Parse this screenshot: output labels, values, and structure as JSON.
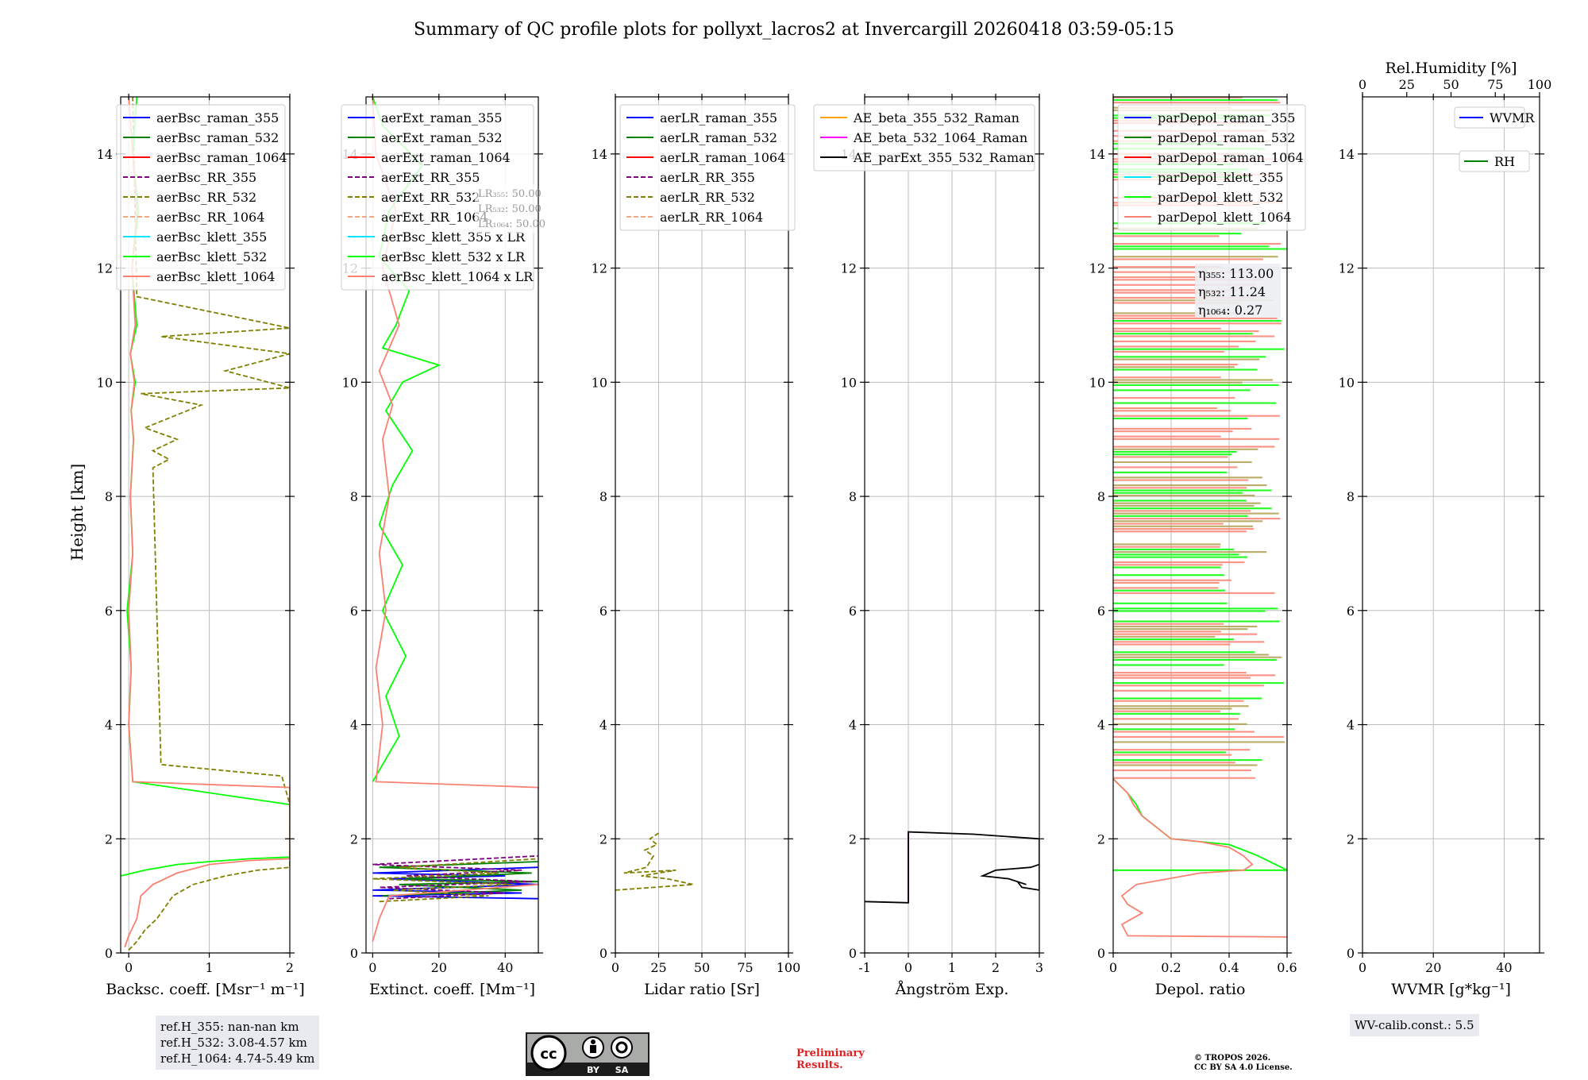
{
  "title": "Summary of QC profile plots for pollyxt_lacros2 at Invercargill 20260418 03:59-05:15",
  "ylabel": "Height [km]",
  "chart_data": [
    {
      "type": "line",
      "id": "bsc",
      "xlabel": "Backsc. coeff. [Msr⁻¹ m⁻¹]",
      "xlim": [
        -0.1,
        2
      ],
      "xticks": [
        0,
        1,
        2
      ],
      "ylim": [
        0,
        15
      ],
      "legend": "top-right",
      "series": [
        {
          "name": "aerBsc_raman_355",
          "color": "#0000ff",
          "dash": false
        },
        {
          "name": "aerBsc_raman_532",
          "color": "#008000",
          "dash": false
        },
        {
          "name": "aerBsc_raman_1064",
          "color": "#ff0000",
          "dash": false
        },
        {
          "name": "aerBsc_RR_355",
          "color": "#800080",
          "dash": true
        },
        {
          "name": "aerBsc_RR_532",
          "color": "#808000",
          "dash": true,
          "x": [
            0.0,
            0.1,
            0.2,
            0.35,
            0.45,
            0.55,
            0.8,
            1.2,
            1.6,
            2.0,
            2.0,
            1.9,
            0.4,
            0.3,
            0.5,
            0.3,
            0.6,
            0.2,
            0.9,
            0.15,
            2.0,
            1.2,
            2.0,
            0.4,
            2.0,
            0.1,
            0.05
          ],
          "y": [
            0.05,
            0.2,
            0.4,
            0.6,
            0.8,
            1.0,
            1.2,
            1.35,
            1.45,
            1.5,
            2.6,
            3.1,
            3.3,
            8.5,
            8.65,
            8.8,
            9.0,
            9.2,
            9.6,
            9.8,
            9.9,
            10.2,
            10.5,
            10.8,
            10.95,
            11.5,
            15
          ]
        },
        {
          "name": "aerBsc_RR_1064",
          "color": "#f4a582",
          "dash": true
        },
        {
          "name": "aerBsc_klett_355",
          "color": "#00e5ff",
          "dash": false
        },
        {
          "name": "aerBsc_klett_532",
          "color": "#00ff00",
          "dash": false,
          "x": [
            -0.1,
            0.2,
            0.6,
            1.0,
            1.5,
            2.0,
            2.0,
            0.05,
            0.0,
            0.03,
            -0.02,
            0.05,
            0.02,
            0.06,
            0.03,
            0.08,
            0.02,
            0.1,
            0.04,
            0.12,
            0.05,
            0.1
          ],
          "y": [
            1.35,
            1.45,
            1.55,
            1.6,
            1.65,
            1.68,
            2.6,
            3.0,
            4.0,
            5.0,
            6.0,
            7.0,
            8.0,
            9.0,
            9.5,
            10.0,
            10.5,
            11.0,
            12.0,
            13.0,
            14.0,
            15.0
          ]
        },
        {
          "name": "aerBsc_klett_1064",
          "color": "#fa8072",
          "dash": false,
          "x": [
            -0.05,
            0.0,
            0.1,
            0.15,
            0.3,
            0.6,
            1.0,
            1.5,
            2.0,
            2.0,
            0.05,
            0.0,
            0.03,
            0.0,
            0.05,
            0.02,
            0.06,
            0.03,
            0.07,
            0.02,
            0.08,
            0.04,
            0.1,
            0.05,
            0.0
          ],
          "y": [
            0.1,
            0.3,
            0.6,
            1.0,
            1.2,
            1.4,
            1.55,
            1.62,
            1.65,
            2.9,
            3.0,
            4.0,
            5.0,
            6.0,
            7.0,
            8.0,
            9.0,
            9.5,
            10.0,
            10.5,
            11.0,
            12.0,
            13.0,
            14.0,
            15.0
          ]
        }
      ],
      "annotation": [
        "ref.H_355: nan-nan km",
        "ref.H_532: 3.08-4.57 km",
        "ref.H_1064: 4.74-5.49 km"
      ]
    },
    {
      "type": "line",
      "id": "ext",
      "xlabel": "Extinct. coeff. [Mm⁻¹]",
      "xlim": [
        -2,
        50
      ],
      "xticks": [
        0,
        20,
        40
      ],
      "ylim": [
        0,
        15
      ],
      "legend": "top-right",
      "lr_box": [
        "LR₃₅₅: 50.00",
        "LR₅₃₂: 50.00",
        "LR₁₀₆₄: 50.00"
      ],
      "series": [
        {
          "name": "aerExt_raman_355",
          "color": "#0000ff",
          "dash": false,
          "x": [
            50,
            0,
            45,
            0,
            50,
            5,
            40,
            0,
            50
          ],
          "y": [
            0.95,
            1.0,
            1.05,
            1.1,
            1.2,
            1.3,
            1.35,
            1.4,
            1.5
          ]
        },
        {
          "name": "aerExt_raman_532",
          "color": "#008000",
          "dash": false,
          "x": [
            3,
            45,
            8,
            50,
            10,
            48,
            2,
            50
          ],
          "y": [
            1.0,
            1.1,
            1.2,
            1.25,
            1.3,
            1.4,
            1.5,
            1.6
          ]
        },
        {
          "name": "aerExt_raman_1064",
          "color": "#ff0000",
          "dash": false
        },
        {
          "name": "aerExt_RR_355",
          "color": "#800080",
          "dash": true,
          "x": [
            5,
            40,
            2,
            48,
            10,
            45,
            0,
            50
          ],
          "y": [
            0.95,
            1.05,
            1.15,
            1.25,
            1.35,
            1.45,
            1.55,
            1.7
          ]
        },
        {
          "name": "aerExt_RR_532",
          "color": "#808000",
          "dash": true,
          "x": [
            2,
            35,
            6,
            42,
            0,
            38,
            8,
            50
          ],
          "y": [
            0.9,
            1.0,
            1.1,
            1.2,
            1.3,
            1.4,
            1.5,
            1.65
          ]
        },
        {
          "name": "aerExt_RR_1064",
          "color": "#f4a582",
          "dash": true
        },
        {
          "name": "aerBsc_klett_355 x LR",
          "color": "#00e5ff",
          "dash": false
        },
        {
          "name": "aerBsc_klett_532 x LR",
          "color": "#00ff00",
          "dash": false,
          "x": [
            0,
            8,
            4,
            10,
            3,
            9,
            2,
            6,
            12,
            4,
            9,
            20,
            3,
            7,
            11,
            2,
            5,
            15,
            3,
            0
          ],
          "y": [
            3.0,
            3.8,
            4.5,
            5.2,
            6.0,
            6.8,
            7.5,
            8.2,
            8.8,
            9.5,
            10.0,
            10.3,
            10.6,
            11.0,
            11.6,
            12.2,
            13.0,
            13.8,
            14.5,
            15.0
          ]
        },
        {
          "name": "aerBsc_klett_1064 x LR",
          "color": "#fa8072",
          "dash": false,
          "x": [
            0,
            2,
            5,
            50,
            50,
            1,
            3,
            1,
            4,
            2,
            5,
            3,
            6,
            2,
            8,
            3,
            7,
            1,
            0
          ],
          "y": [
            0.2,
            0.6,
            1.0,
            1.2,
            2.9,
            3.0,
            4.0,
            5.0,
            6.0,
            7.0,
            8.0,
            9.0,
            9.6,
            10.2,
            11.0,
            12.0,
            13.0,
            14.0,
            15.0
          ]
        }
      ]
    },
    {
      "type": "line",
      "id": "lr",
      "xlabel": "Lidar ratio [Sr]",
      "xlim": [
        0,
        100
      ],
      "xticks": [
        0,
        25,
        50,
        75,
        100
      ],
      "ylim": [
        0,
        15
      ],
      "legend": "top-left",
      "series": [
        {
          "name": "aerLR_raman_355",
          "color": "#0000ff",
          "dash": false
        },
        {
          "name": "aerLR_raman_532",
          "color": "#008000",
          "dash": false
        },
        {
          "name": "aerLR_raman_1064",
          "color": "#ff0000",
          "dash": false
        },
        {
          "name": "aerLR_RR_355",
          "color": "#800080",
          "dash": true
        },
        {
          "name": "aerLR_RR_532",
          "color": "#808000",
          "dash": true,
          "x": [
            0,
            45,
            30,
            15,
            35,
            5,
            18,
            22,
            17,
            24,
            20,
            25
          ],
          "y": [
            1.1,
            1.2,
            1.3,
            1.35,
            1.45,
            1.4,
            1.5,
            1.7,
            1.8,
            1.9,
            2.0,
            2.1
          ]
        },
        {
          "name": "aerLR_RR_1064",
          "color": "#f4a582",
          "dash": true
        }
      ]
    },
    {
      "type": "line",
      "id": "ae",
      "xlabel": "Ångström Exp.",
      "xlim": [
        -1,
        3
      ],
      "xticks": [
        -1,
        0,
        1,
        2,
        3
      ],
      "ylim": [
        0,
        15
      ],
      "legend": "top-right",
      "series": [
        {
          "name": "AE_beta_355_532_Raman",
          "color": "#ffa500",
          "dash": false
        },
        {
          "name": "AE_beta_532_1064_Raman",
          "color": "#ff00ff",
          "dash": false,
          "x": [
            0,
            0
          ],
          "y": [
            0.9,
            2.1
          ]
        },
        {
          "name": "AE_parExt_355_532_Raman",
          "color": "#000000",
          "dash": false,
          "x": [
            -1,
            0,
            0,
            0,
            1.5,
            3.0,
            3.0,
            2.6,
            2.5,
            2.7,
            2.3,
            1.7,
            2.0,
            2.8,
            3.0
          ],
          "y": [
            0.9,
            0.88,
            0.9,
            2.12,
            2.08,
            2.0,
            1.1,
            1.15,
            1.25,
            1.2,
            1.3,
            1.35,
            1.45,
            1.5,
            1.55
          ]
        }
      ]
    },
    {
      "type": "line",
      "id": "dep",
      "xlabel": "Depol. ratio",
      "xlim": [
        0,
        0.6
      ],
      "xticks": [
        0.0,
        0.2,
        0.4,
        0.6
      ],
      "ylim": [
        0,
        15
      ],
      "legend": "top-left",
      "eta_box": [
        "η₃₅₅: 113.00",
        "η₅₃₂: 11.24",
        "η₁₀₆₄: 0.27"
      ],
      "series": [
        {
          "name": "parDepol_raman_355",
          "color": "#0000ff",
          "dash": false
        },
        {
          "name": "parDepol_raman_532",
          "color": "#008000",
          "dash": false
        },
        {
          "name": "parDepol_raman_1064",
          "color": "#ff0000",
          "dash": false
        },
        {
          "name": "parDepol_klett_355",
          "color": "#00e5ff",
          "dash": false
        },
        {
          "name": "parDepol_klett_532",
          "color": "#00ff00",
          "dash": false,
          "x": [
            0.0,
            0.6,
            0.5,
            0.45,
            0.4,
            0.3,
            0.2,
            0.15,
            0.1,
            0.08,
            0.05,
            0.02,
            0.0
          ],
          "y": [
            1.45,
            1.45,
            1.7,
            1.8,
            1.9,
            1.95,
            2.0,
            2.2,
            2.4,
            2.6,
            2.8,
            2.95,
            3.05
          ]
        },
        {
          "name": "parDepol_klett_1064",
          "color": "#fa8072",
          "dash": false,
          "x": [
            0.6,
            0.05,
            0.03,
            0.1,
            0.05,
            0.03,
            0.08,
            0.3,
            0.45,
            0.48,
            0.45,
            0.4,
            0.3,
            0.2,
            0.15,
            0.1,
            0.07,
            0.05,
            0.02,
            0.0
          ],
          "y": [
            0.28,
            0.3,
            0.5,
            0.7,
            0.85,
            1.0,
            1.2,
            1.4,
            1.45,
            1.55,
            1.7,
            1.85,
            1.95,
            2.0,
            2.2,
            2.4,
            2.6,
            2.8,
            2.95,
            3.05
          ]
        }
      ],
      "noise_start_km": 3.05
    },
    {
      "type": "line",
      "id": "wv",
      "xlabel": "WVMR [g*kg⁻¹]",
      "top_xlabel": "Rel.Humidity [%]",
      "xlim": [
        0,
        50
      ],
      "xticks": [
        0,
        20,
        40
      ],
      "top_xlim": [
        0,
        100
      ],
      "top_xticks": [
        0,
        25,
        50,
        75,
        100
      ],
      "ylim": [
        0,
        15
      ],
      "series": [
        {
          "name": "WVMR",
          "color": "#0000ff",
          "dash": false
        },
        {
          "name": "RH",
          "color": "#008000",
          "dash": false
        }
      ],
      "annotation": [
        "WV-calib.const.: 5.5"
      ]
    }
  ],
  "yticks": [
    0,
    2,
    4,
    6,
    8,
    10,
    12,
    14
  ],
  "license": {
    "by": "BY",
    "sa": "SA"
  },
  "preliminary": [
    "Preliminary",
    "Results."
  ],
  "copyright": [
    "© TROPOS 2026.",
    "CC BY SA 4.0 License."
  ]
}
